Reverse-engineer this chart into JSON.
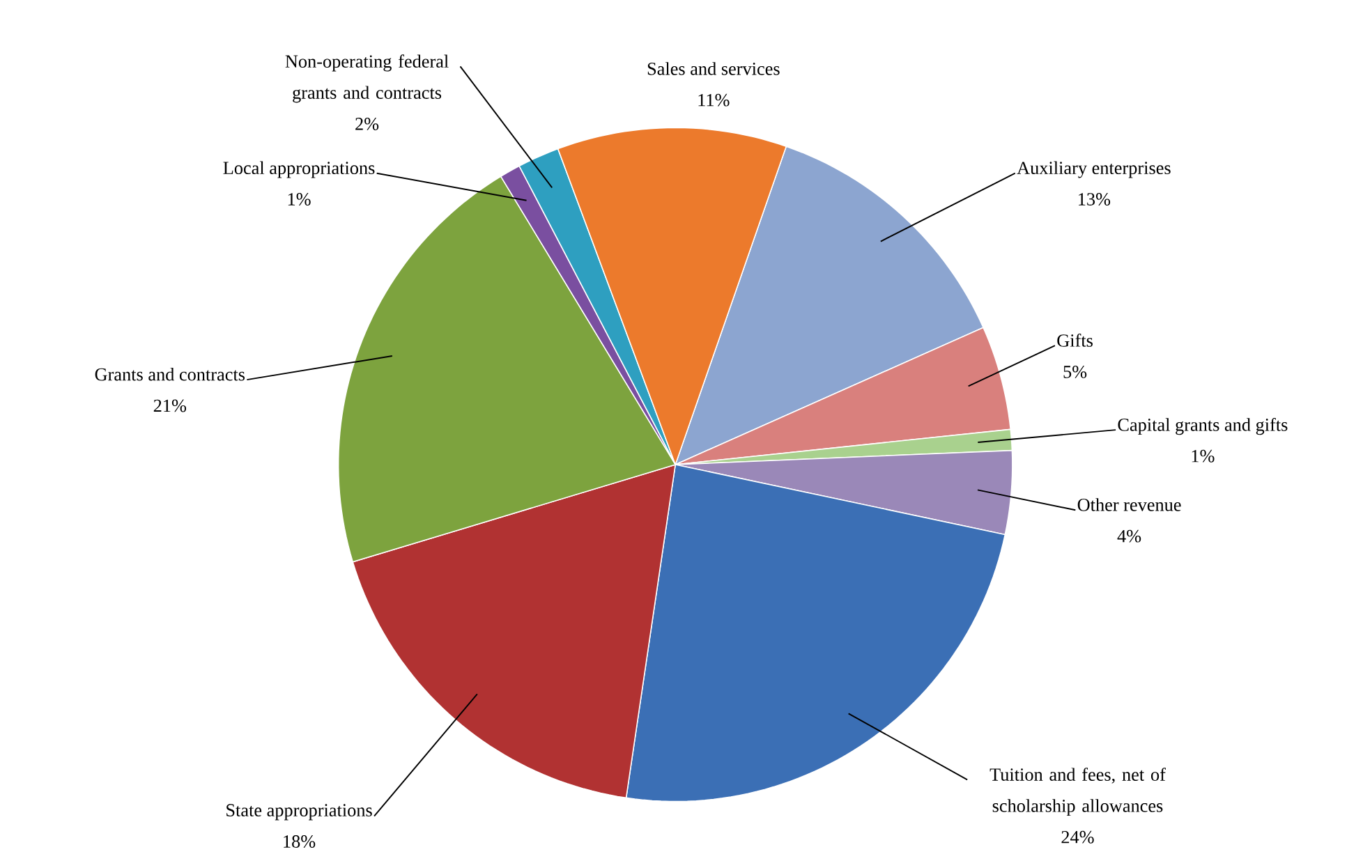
{
  "chart_data": {
    "type": "pie",
    "categories": [
      "Auxiliary enterprises",
      "Gifts",
      "Capital grants and gifts",
      "Other revenue",
      "Tuition and fees, net of scholarship allowances",
      "State appropriations",
      "Grants and contracts",
      "Local appropriations",
      "Non-operating federal grants and contracts",
      "Sales and services"
    ],
    "values": [
      13,
      5,
      1,
      4,
      24,
      18,
      21,
      1,
      2,
      11
    ],
    "value_labels": [
      "13%",
      "5%",
      "1%",
      "4%",
      "24%",
      "18%",
      "21%",
      "1%",
      "2%",
      "11%"
    ],
    "colors": [
      "#8ca5d0",
      "#d9807d",
      "#a9d18e",
      "#9a88b8",
      "#3b6fb5",
      "#b13232",
      "#7da33e",
      "#7a4fa0",
      "#2e9fc0",
      "#ec7a2c"
    ]
  }
}
